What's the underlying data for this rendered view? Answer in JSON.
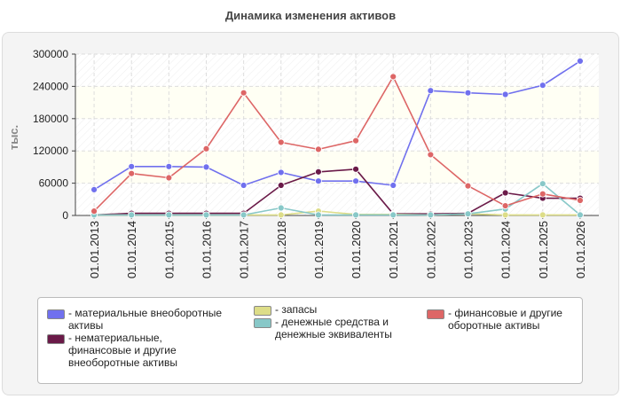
{
  "chart_data": {
    "type": "line",
    "title": "Динамика изменения активов",
    "ylabel": "тыс.",
    "xlabel": "",
    "ylim": [
      0,
      300000
    ],
    "yticks": [
      0,
      60000,
      120000,
      180000,
      240000,
      300000
    ],
    "ytick_labels": [
      "0",
      "60000",
      "120000",
      "180000",
      "240000",
      "300000"
    ],
    "grid": true,
    "legend_position": "bottom",
    "categories": [
      "01.01.2013",
      "01.01.2014",
      "01.01.2015",
      "01.01.2016",
      "01.01.2017",
      "01.01.2018",
      "01.01.2019",
      "01.01.2020",
      "01.01.2021",
      "01.01.2022",
      "01.01.2023",
      "01.01.2024",
      "01.01.2025",
      "01.01.2026"
    ],
    "series": [
      {
        "name": "- материальные внеоборотные активы",
        "color": "#7070ee",
        "values": [
          48000,
          91000,
          91000,
          90000,
          56000,
          80000,
          64000,
          64000,
          56000,
          232000,
          228000,
          225000,
          242000,
          287000
        ]
      },
      {
        "name": "- нематериальные, финансовые и другие внеоборотные активы",
        "color": "#6a1a48",
        "values": [
          1000,
          4000,
          4000,
          4000,
          4000,
          56000,
          81000,
          86000,
          3000,
          3000,
          4000,
          42000,
          32000,
          32000
        ]
      },
      {
        "name": "- запасы",
        "color": "#dddd88",
        "values": [
          1000,
          1000,
          1000,
          1000,
          1000,
          1000,
          8000,
          2000,
          2000,
          1000,
          3000,
          1000,
          1000,
          1000
        ]
      },
      {
        "name": "- денежные средства и денежные эквиваленты",
        "color": "#88c8c8",
        "values": [
          1000,
          1000,
          1000,
          1000,
          1000,
          14000,
          1000,
          1000,
          1000,
          1000,
          3000,
          12000,
          59000,
          1000
        ]
      },
      {
        "name": "- финансовые и другие оборотные активы",
        "color": "#dd6666",
        "values": [
          8000,
          78000,
          70000,
          124000,
          228000,
          136000,
          123000,
          139000,
          258000,
          113000,
          55000,
          18000,
          40000,
          28000
        ]
      }
    ]
  }
}
